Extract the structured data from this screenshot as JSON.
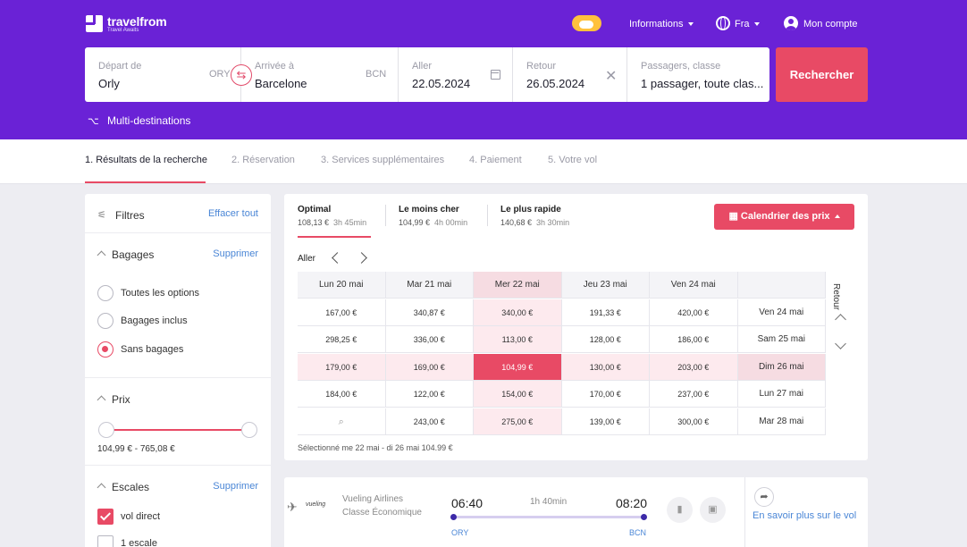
{
  "header": {
    "logo_name": "travelfrom",
    "logo_tagline": "Travel Awaits",
    "nav_informations": "Informations",
    "nav_language": "Fra",
    "nav_account": "Mon compte"
  },
  "search": {
    "from_label": "Départ de",
    "from_value": "Orly",
    "from_code": "ORY",
    "to_label": "Arrivée à",
    "to_value": "Barcelone",
    "to_code": "BCN",
    "depart_label": "Aller",
    "depart_value": "22.05.2024",
    "return_label": "Retour",
    "return_value": "26.05.2024",
    "pax_label": "Passagers, classe",
    "pax_value": "1 passager, toute clas...",
    "button": "Rechercher",
    "multi": "Multi-destinations"
  },
  "steps": [
    "1. Résultats de la recherche",
    "2. Réservation",
    "3. Services supplémentaires",
    "4. Paiement",
    "5. Votre vol"
  ],
  "filters": {
    "title": "Filtres",
    "clear_all": "Effacer tout",
    "baggage": {
      "title": "Bagages",
      "remove": "Supprimer",
      "options": [
        "Toutes les options",
        "Bagages inclus",
        "Sans bagages"
      ],
      "selected_index": 2
    },
    "price": {
      "title": "Prix",
      "range": "104,99 € - 765,08 €",
      "min": 104.99,
      "max": 765.08
    },
    "stops": {
      "title": "Escales",
      "remove": "Supprimer",
      "options": [
        "vol direct",
        "1 escale"
      ],
      "checked": [
        true,
        false
      ]
    }
  },
  "sort_tabs": [
    {
      "title": "Optimal",
      "price": "108,13 €",
      "time": "3h 45min"
    },
    {
      "title": "Le moins cher",
      "price": "104,99 €",
      "time": "4h 00min"
    },
    {
      "title": "Le plus rapide",
      "price": "140,68 €",
      "time": "3h 30min"
    }
  ],
  "price_calendar": {
    "button": "Calendrier des prix",
    "aller": "Aller",
    "retour": "Retour",
    "departure_days": [
      "Lun 20 mai",
      "Mar 21 mai",
      "Mer 22 mai",
      "Jeu 23 mai",
      "Ven 24 mai"
    ],
    "return_days": [
      "Ven 24 mai",
      "Sam 25 mai",
      "Dim 26 mai",
      "Lun 27 mai",
      "Mar 28 mai"
    ],
    "rows": [
      [
        "167,00 €",
        "340,87 €",
        "340,00 €",
        "191,33 €",
        "420,00 €"
      ],
      [
        "298,25 €",
        "336,00 €",
        "113,00 €",
        "128,00 €",
        "186,00 €"
      ],
      [
        "179,00 €",
        "169,00 €",
        "104,99 €",
        "130,00 €",
        "203,00 €"
      ],
      [
        "184,00 €",
        "122,00 €",
        "154,00 €",
        "170,00 €",
        "237,00 €"
      ],
      [
        "",
        "243,00 €",
        "275,00 €",
        "139,00 €",
        "300,00 €"
      ]
    ],
    "selected_row": 2,
    "selected_col": 2,
    "selected_text": "Sélectionné   me 22 mai - di 26 mai   104.99 €"
  },
  "flight": {
    "airline_logo": "vueling",
    "airline": "Vueling Airlines",
    "cabin": "Classe Économique",
    "depart_time": "06:40",
    "duration": "1h 40min",
    "arrive_time": "08:20",
    "from_code": "ORY",
    "to_code": "BCN",
    "more_link": "En savoir plus sur le vol"
  },
  "colors": {
    "brand_purple": "#6a22d6",
    "accent_red": "#e84a65",
    "link_blue": "#4a86d6"
  }
}
